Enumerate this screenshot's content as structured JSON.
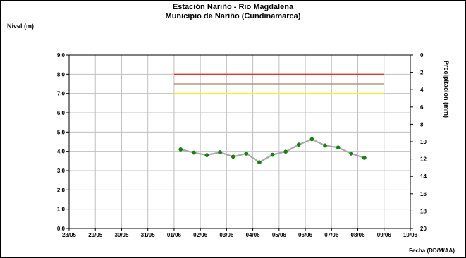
{
  "chart_data": {
    "type": "line",
    "title": "Estación Nariño  - Río Magdalena",
    "subtitle": "Municipio de Nariño (Cundinamarca)",
    "ylabel": "Nivel (m)",
    "y2label": "Precipitacion (mm)",
    "xlabel": "Fecha (DD/M/AA)",
    "x_ticks": [
      "28/05",
      "29/05",
      "30/05",
      "31/05",
      "01/06",
      "02/06",
      "03/06",
      "04/06",
      "05/06",
      "06/06",
      "07/06",
      "08/06",
      "09/06",
      "10/06"
    ],
    "y_ticks": [
      "9.0",
      "8.0",
      "7.0",
      "6.0",
      "5.0",
      "4.0",
      "3.0",
      "2.0",
      "1.0",
      "0.0"
    ],
    "y2_ticks": [
      "0",
      "2",
      "4",
      "6",
      "8",
      "10",
      "12",
      "14",
      "16",
      "18",
      "20"
    ],
    "ylim": [
      0,
      9
    ],
    "y2lim": [
      0,
      20
    ],
    "y2_inverted": true,
    "xlim": [
      "2000-05-28",
      "2000-06-10"
    ],
    "grid": true,
    "thresholds": [
      {
        "value": 8.0,
        "color": "#e8332a",
        "x_start": "01/06",
        "x_end": "09/06"
      },
      {
        "value": 7.5,
        "color": "#a08a60",
        "x_start": "01/06",
        "x_end": "09/06"
      },
      {
        "value": 7.0,
        "color": "#f5f500",
        "x_start": "01/06",
        "x_end": "09/06"
      }
    ],
    "series": [
      {
        "line_color": "#a9a9a9",
        "marker_color": "#0a8a0a",
        "points": [
          {
            "x": "2000-06-01 06:00",
            "y": 4.1
          },
          {
            "x": "2000-06-01 18:00",
            "y": 3.93
          },
          {
            "x": "2000-06-02 06:00",
            "y": 3.8
          },
          {
            "x": "2000-06-02 18:00",
            "y": 3.95
          },
          {
            "x": "2000-06-03 06:00",
            "y": 3.72
          },
          {
            "x": "2000-06-03 18:00",
            "y": 3.88
          },
          {
            "x": "2000-06-04 06:00",
            "y": 3.43
          },
          {
            "x": "2000-06-04 18:00",
            "y": 3.82
          },
          {
            "x": "2000-06-05 06:00",
            "y": 3.98
          },
          {
            "x": "2000-06-05 18:00",
            "y": 4.35
          },
          {
            "x": "2000-06-06 06:00",
            "y": 4.63
          },
          {
            "x": "2000-06-06 18:00",
            "y": 4.3
          },
          {
            "x": "2000-06-07 06:00",
            "y": 4.2
          },
          {
            "x": "2000-06-07 18:00",
            "y": 3.88
          },
          {
            "x": "2000-06-08 06:00",
            "y": 3.66
          }
        ]
      }
    ]
  }
}
